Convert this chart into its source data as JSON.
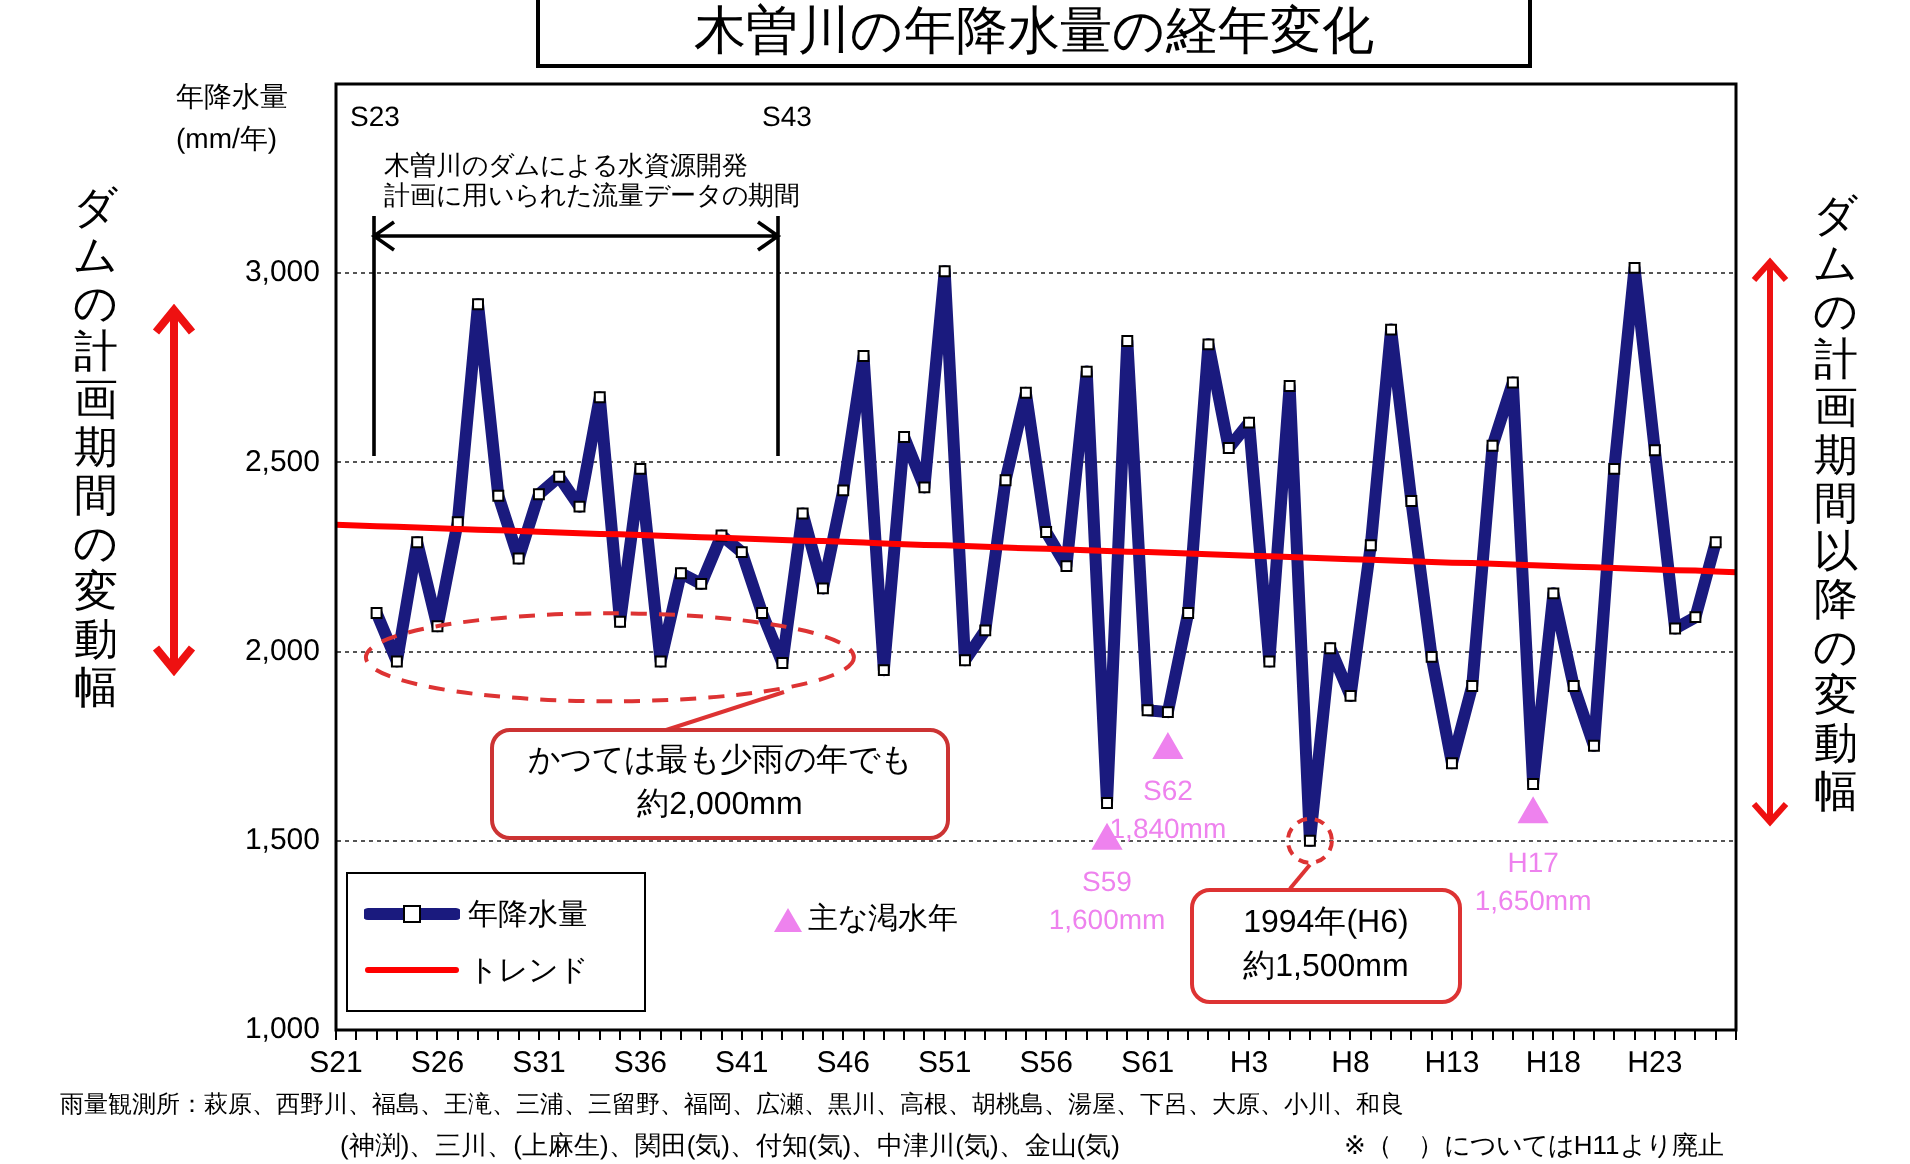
{
  "chart_data": {
    "type": "line",
    "title": "木曽川の年降水量の経年変化",
    "ylabel": "年降水量\n(mm/年)",
    "categories": [
      "S21",
      null,
      null,
      null,
      null,
      "S26",
      null,
      null,
      null,
      null,
      "S31",
      null,
      null,
      null,
      null,
      "S36",
      null,
      null,
      null,
      null,
      "S41",
      null,
      null,
      null,
      null,
      "S46",
      null,
      null,
      null,
      null,
      "S51",
      null,
      null,
      null,
      null,
      "S56",
      null,
      null,
      null,
      null,
      "S61",
      null,
      null,
      null,
      null,
      "H3",
      null,
      null,
      null,
      null,
      "H8",
      null,
      null,
      null,
      null,
      "H13",
      null,
      null,
      null,
      null,
      "H18",
      null,
      null,
      null,
      null,
      "H23",
      null,
      null,
      null,
      null
    ],
    "series": [
      {
        "name": "年降水量",
        "color": "#1a1a7e",
        "marker": "square",
        "values": [
          null,
          null,
          2102,
          1974,
          2289,
          2067,
          2342,
          2918,
          2412,
          2246,
          2416,
          2462,
          2383,
          2672,
          2079,
          2483,
          1974,
          2207,
          2179,
          2307,
          2263,
          2102,
          1970,
          2365,
          2167,
          2426,
          2781,
          1951,
          2567,
          2434,
          3005,
          1977,
          2056,
          2453,
          2684,
          2316,
          2226,
          2740,
          1600,
          2821,
          1845,
          1840,
          2102,
          2812,
          2538,
          2605,
          1974,
          2702,
          1500,
          2009,
          1883,
          2281,
          2851,
          2398,
          1986,
          1705,
          1909,
          2544,
          2711,
          1650,
          2154,
          1909,
          1751,
          2483,
          3014,
          2532,
          2061,
          2091,
          2289,
          null
        ]
      },
      {
        "name": "トレンド",
        "color": "#ff0000",
        "marker": "none",
        "values": [
          2335,
          2333,
          2331,
          2330,
          2328,
          2326,
          2324,
          2322,
          2321,
          2319,
          2317,
          2315,
          2313,
          2311,
          2310,
          2308,
          2306,
          2304,
          2302,
          2301,
          2299,
          2297,
          2295,
          2293,
          2292,
          2290,
          2288,
          2286,
          2284,
          2282,
          2281,
          2279,
          2277,
          2275,
          2273,
          2272,
          2270,
          2268,
          2266,
          2264,
          2263,
          2261,
          2259,
          2257,
          2255,
          2253,
          2252,
          2250,
          2248,
          2246,
          2244,
          2243,
          2241,
          2239,
          2237,
          2235,
          2234,
          2232,
          2230,
          2228,
          2226,
          2224,
          2223,
          2221,
          2219,
          2217,
          2215,
          2214,
          2212,
          2210
        ]
      },
      {
        "name": "主な渇水年",
        "type": "scatter",
        "color": "#ee82ee",
        "marker": "triangle",
        "values": [
          null,
          null,
          null,
          null,
          null,
          null,
          null,
          null,
          null,
          null,
          null,
          null,
          null,
          null,
          null,
          null,
          null,
          null,
          null,
          null,
          null,
          null,
          null,
          null,
          null,
          null,
          null,
          null,
          null,
          null,
          null,
          null,
          null,
          null,
          null,
          null,
          null,
          null,
          1500,
          null,
          null,
          1740,
          null,
          null,
          null,
          null,
          null,
          null,
          null,
          null,
          null,
          null,
          null,
          null,
          null,
          null,
          null,
          null,
          null,
          1570,
          null,
          null,
          null,
          null,
          null,
          null,
          null,
          null,
          null,
          null
        ]
      }
    ],
    "ylim": [
      1000,
      3500
    ],
    "yticks": [
      {
        "value": 1000,
        "label": "1,000"
      },
      {
        "value": 1500,
        "label": "1,500"
      },
      {
        "value": 2000,
        "label": "2,000"
      },
      {
        "value": 2500,
        "label": "2,500"
      },
      {
        "value": 3000,
        "label": "3,000"
      }
    ],
    "grid": "y",
    "legend": "bottom left",
    "line_style": "solid",
    "annotations": [
      "S23",
      "S43",
      "木曽川のダムによる水資源開発",
      "計画に用いられた流量データの期間",
      "かつては最も少雨の年でも約2,000mm",
      {
        "text": "S59\n1,600mm",
        "y": 1600
      },
      {
        "text": "S62\n1,840mm",
        "y": 1840
      },
      {
        "text": "H17\n1,650mm",
        "y": 1650
      },
      {
        "text": "1994年(H6)約1,500mm",
        "y": 1500
      },
      "ダムの計画期間の変動幅",
      "ダムの計画期間以降の変動幅",
      "雨量観測所：萩原、西野川、福島、王滝、三浦、三留野、福岡、広瀬、黒川、高根、胡桃島、湯屋、下呂、大原、小川、和良",
      "(神渕)、三川、(上麻生)、関田(気)、付知(気)、中津川(気)、金山(気)",
      "※（　）についてはH11より廃止"
    ]
  }
}
